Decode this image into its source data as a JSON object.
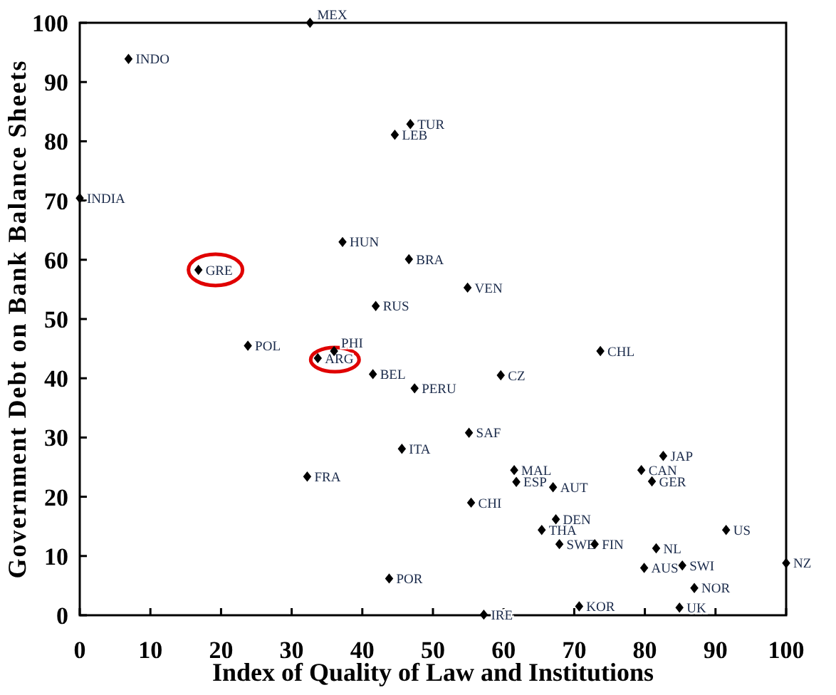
{
  "chart_data": {
    "type": "scatter",
    "xlabel": "Index of Quality of Law and Institutions",
    "ylabel": "Government Debt on Bank Balance Sheets",
    "marker": "diamond",
    "grid": false,
    "color": "#000000",
    "xlim": [
      0,
      100
    ],
    "xticks": [
      0,
      10,
      20,
      30,
      40,
      50,
      60,
      70,
      80,
      90,
      100
    ],
    "ylim": [
      0,
      100
    ],
    "yticks": [
      0,
      10,
      20,
      30,
      40,
      50,
      60,
      70,
      80,
      90,
      100
    ],
    "x": [
      32.6,
      6.9,
      0,
      16.8,
      37.2,
      41.9,
      44.6,
      46.8,
      46.6,
      54.9,
      23.8,
      33.7,
      36.0,
      41.5,
      45.6,
      32.2,
      43.8,
      73.7,
      59.6,
      47.4,
      55.1,
      82.6,
      61.5,
      61.8,
      67.0,
      79.5,
      81.0,
      55.4,
      67.4,
      65.4,
      91.5,
      67.9,
      72.9,
      81.6,
      79.9,
      85.3,
      100,
      87.0,
      70.7,
      84.9,
      57.2
    ],
    "values": [
      100,
      93.9,
      70.4,
      58.3,
      63.0,
      52.2,
      81.1,
      82.9,
      60.1,
      55.3,
      45.5,
      43.4,
      44.6,
      40.7,
      28.1,
      23.4,
      6.2,
      44.6,
      40.5,
      38.3,
      30.8,
      26.9,
      24.5,
      22.5,
      21.6,
      24.5,
      22.6,
      19.0,
      16.2,
      14.4,
      14.4,
      12.0,
      12.0,
      11.3,
      8.0,
      8.4,
      8.8,
      4.6,
      1.5,
      1.3,
      0.1
    ],
    "annotations": [
      {
        "text": "MEX",
        "x": 32.6,
        "y": 100
      },
      {
        "text": "INDO",
        "x": 6.9,
        "y": 93.9
      },
      {
        "text": "INDIA",
        "x": 0,
        "y": 70.4
      },
      {
        "text": "GRE",
        "x": 16.8,
        "y": 58.3
      },
      {
        "text": "HUN",
        "x": 37.2,
        "y": 63.0
      },
      {
        "text": "RUS",
        "x": 41.9,
        "y": 52.2
      },
      {
        "text": "LEB",
        "x": 44.6,
        "y": 81.1
      },
      {
        "text": "TUR",
        "x": 46.8,
        "y": 82.9
      },
      {
        "text": "BRA",
        "x": 46.6,
        "y": 60.1
      },
      {
        "text": "VEN",
        "x": 54.9,
        "y": 55.3
      },
      {
        "text": "POL",
        "x": 23.8,
        "y": 45.5
      },
      {
        "text": "ARG",
        "x": 33.7,
        "y": 43.4
      },
      {
        "text": "PHI",
        "x": 36.0,
        "y": 44.6
      },
      {
        "text": "BEL",
        "x": 41.5,
        "y": 40.7
      },
      {
        "text": "ITA",
        "x": 45.6,
        "y": 28.1
      },
      {
        "text": "FRA",
        "x": 32.2,
        "y": 23.4
      },
      {
        "text": "POR",
        "x": 43.8,
        "y": 6.2
      },
      {
        "text": "CHL",
        "x": 73.7,
        "y": 44.6
      },
      {
        "text": "CZ",
        "x": 59.6,
        "y": 40.5
      },
      {
        "text": "PERU",
        "x": 47.4,
        "y": 38.3
      },
      {
        "text": "SAF",
        "x": 55.1,
        "y": 30.8
      },
      {
        "text": "JAP",
        "x": 82.6,
        "y": 26.9
      },
      {
        "text": "MAL",
        "x": 61.5,
        "y": 24.5
      },
      {
        "text": "ESP",
        "x": 61.8,
        "y": 22.5
      },
      {
        "text": "AUT",
        "x": 67.0,
        "y": 21.6
      },
      {
        "text": "CAN",
        "x": 79.5,
        "y": 24.5
      },
      {
        "text": "GER",
        "x": 81.0,
        "y": 22.6
      },
      {
        "text": "CHI",
        "x": 55.4,
        "y": 19.0
      },
      {
        "text": "DEN",
        "x": 67.4,
        "y": 16.2
      },
      {
        "text": "THA",
        "x": 65.4,
        "y": 14.4
      },
      {
        "text": "US",
        "x": 91.5,
        "y": 14.4
      },
      {
        "text": "SWE",
        "x": 67.9,
        "y": 12.0
      },
      {
        "text": "FIN",
        "x": 72.9,
        "y": 12.0
      },
      {
        "text": "NL",
        "x": 81.6,
        "y": 11.3
      },
      {
        "text": "AUS",
        "x": 79.9,
        "y": 8.0
      },
      {
        "text": "SWI",
        "x": 85.3,
        "y": 8.4
      },
      {
        "text": "NZ",
        "x": 100,
        "y": 8.8
      },
      {
        "text": "NOR",
        "x": 87.0,
        "y": 4.6
      },
      {
        "text": "KOR",
        "x": 70.7,
        "y": 1.5
      },
      {
        "text": "UK",
        "x": 84.9,
        "y": 1.3
      },
      {
        "text": "IRE",
        "x": 57.2,
        "y": 0.1
      }
    ]
  }
}
